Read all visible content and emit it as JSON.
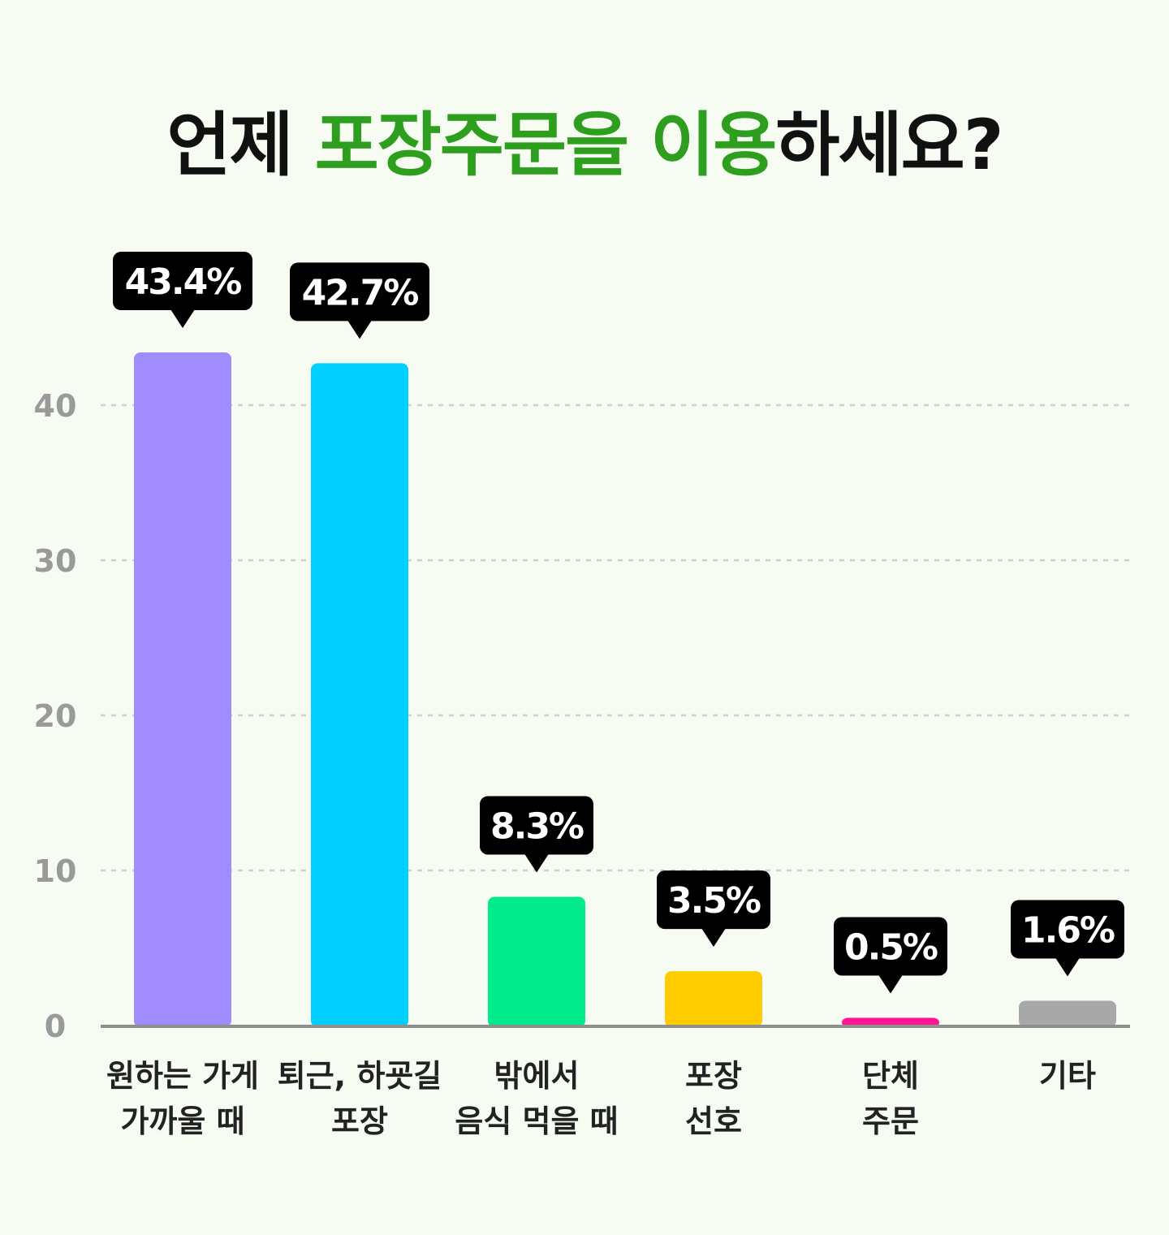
{
  "title": {
    "part1": "언제 ",
    "part2": "포장주문을",
    "part3": " ",
    "part4": "이용",
    "part5": "하세요?"
  },
  "colors": {
    "background": "#f7fcf2",
    "title_text": "#111111",
    "title_highlight": "#2e9e1f",
    "bubble": "#000000",
    "axis": "#8f8f8f",
    "grid": "#cfcfcf",
    "tick_text": "#9a9a9a"
  },
  "chart_data": {
    "type": "bar",
    "categories": [
      [
        "원하는 가게",
        "가까울 때"
      ],
      [
        "퇴근, 하굣길",
        "포장"
      ],
      [
        "밖에서",
        "음식 먹을 때"
      ],
      [
        "포장",
        "선호"
      ],
      [
        "단체",
        "주문"
      ],
      [
        "기타"
      ]
    ],
    "values": [
      43.4,
      42.7,
      8.3,
      3.5,
      0.5,
      1.6
    ],
    "value_labels": [
      "43.4%",
      "42.7%",
      "8.3%",
      "3.5%",
      "0.5%",
      "1.6%"
    ],
    "bar_colors": [
      "#a08bff",
      "#00d0ff",
      "#00ec8c",
      "#ffcc00",
      "#ff1493",
      "#a8a8a8"
    ],
    "yticks": [
      0,
      10,
      20,
      30,
      40
    ],
    "ylim": [
      0,
      45
    ],
    "grid": true,
    "xlabel": "",
    "ylabel": ""
  }
}
